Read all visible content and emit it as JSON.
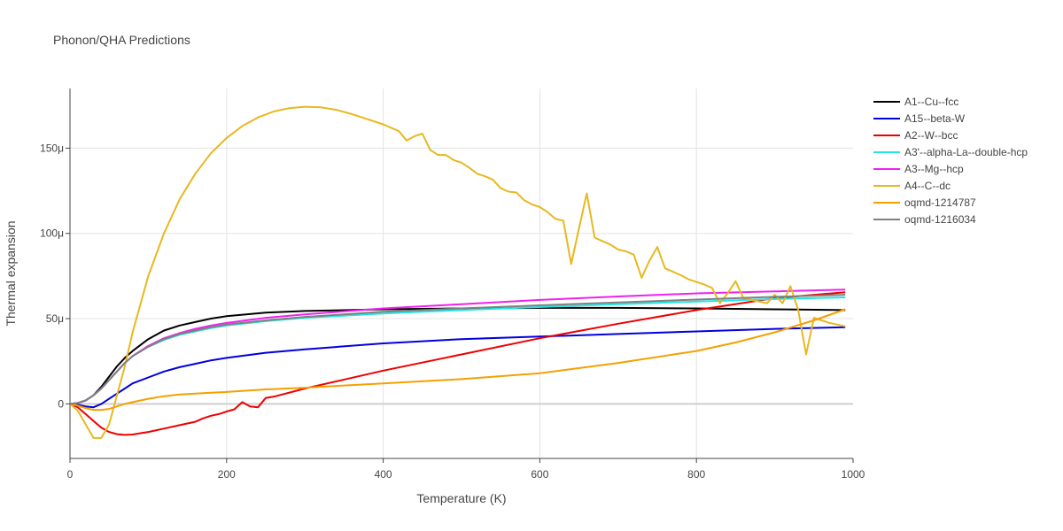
{
  "chart_data": {
    "type": "line",
    "title": "Phonon/QHA Predictions",
    "xlabel": "Temperature (K)",
    "ylabel": "Thermal expansion",
    "xlim": [
      0,
      1000
    ],
    "ylim": [
      -32,
      185
    ],
    "y_unit_suffix": "μ",
    "x_ticks": [
      0,
      200,
      400,
      600,
      800,
      1000
    ],
    "y_ticks": [
      0,
      50,
      100,
      150
    ],
    "x_tick_labels": [
      "0",
      "200",
      "400",
      "600",
      "800",
      "1000"
    ],
    "y_tick_labels": [
      "0",
      "50μ",
      "100μ",
      "150μ"
    ],
    "grid": true,
    "legend_position": "right",
    "series": [
      {
        "name": "A1--Cu--fcc",
        "color": "#000000",
        "x": [
          0,
          10,
          20,
          30,
          40,
          50,
          60,
          70,
          80,
          100,
          120,
          140,
          160,
          180,
          200,
          250,
          300,
          400,
          500,
          600,
          700,
          800,
          900,
          990
        ],
        "y": [
          0,
          0.5,
          2,
          5,
          10,
          16,
          22,
          27,
          31,
          38,
          43,
          46,
          48,
          50,
          51.5,
          53.5,
          54.5,
          55.5,
          56,
          56.3,
          56.3,
          56,
          55.5,
          55
        ]
      },
      {
        "name": "A15--beta-W",
        "color": "#0000dd",
        "x": [
          0,
          10,
          20,
          30,
          40,
          50,
          60,
          70,
          80,
          100,
          120,
          140,
          160,
          180,
          200,
          250,
          300,
          400,
          500,
          600,
          700,
          800,
          900,
          990
        ],
        "y": [
          0,
          -0.5,
          -1.5,
          -2,
          0,
          3,
          6,
          9,
          12,
          15.5,
          19,
          21.5,
          23.5,
          25.5,
          27,
          30,
          32,
          35.5,
          38,
          39.5,
          41,
          42.5,
          44,
          45
        ]
      },
      {
        "name": "A2--W--bcc",
        "color": "#ee0000",
        "x": [
          0,
          10,
          20,
          30,
          40,
          50,
          60,
          70,
          80,
          90,
          100,
          120,
          140,
          160,
          170,
          180,
          190,
          200,
          210,
          220,
          230,
          240,
          250,
          260,
          300,
          400,
          500,
          600,
          700,
          800,
          900,
          990
        ],
        "y": [
          0,
          -2,
          -6,
          -10,
          -14,
          -16.5,
          -17.8,
          -18.2,
          -18,
          -17.2,
          -16.5,
          -14.5,
          -12.5,
          -10.5,
          -8.5,
          -7,
          -6,
          -4.5,
          -3.2,
          1,
          -1.5,
          -2,
          3.5,
          4.2,
          9,
          19.5,
          29,
          38.5,
          47,
          55,
          62,
          65.5
        ]
      },
      {
        "name": "A3'--alpha-La--double-hcp",
        "color": "#22e6e6",
        "x": [
          0,
          10,
          20,
          30,
          40,
          50,
          60,
          70,
          80,
          100,
          120,
          140,
          160,
          180,
          200,
          250,
          300,
          400,
          500,
          600,
          700,
          800,
          900,
          990
        ],
        "y": [
          0,
          0.5,
          2,
          5,
          9,
          14,
          19,
          24,
          28,
          33.5,
          37.5,
          40.5,
          42.5,
          44.5,
          46,
          48.5,
          50.5,
          53,
          55,
          56.8,
          58.5,
          60,
          61.5,
          62.5
        ]
      },
      {
        "name": "A3--Mg--hcp",
        "color": "#ee22ee",
        "x": [
          0,
          10,
          20,
          30,
          40,
          50,
          60,
          70,
          80,
          100,
          120,
          140,
          160,
          180,
          200,
          250,
          300,
          400,
          500,
          600,
          700,
          800,
          900,
          990
        ],
        "y": [
          0,
          0.5,
          2,
          5,
          9,
          14,
          19,
          24,
          28,
          34,
          38.5,
          41.5,
          44,
          46,
          47.5,
          50.5,
          52.5,
          56,
          58.5,
          61,
          63,
          64.8,
          66,
          67
        ]
      },
      {
        "name": "A4--C--dc",
        "color": "#e8b820",
        "x": [
          0,
          10,
          20,
          30,
          40,
          50,
          60,
          70,
          80,
          100,
          120,
          140,
          160,
          180,
          200,
          220,
          240,
          260,
          280,
          300,
          320,
          340,
          360,
          380,
          400,
          420,
          430,
          440,
          450,
          460,
          470,
          480,
          490,
          500,
          510,
          520,
          530,
          540,
          550,
          560,
          570,
          580,
          590,
          600,
          610,
          620,
          630,
          640,
          650,
          660,
          670,
          680,
          690,
          700,
          710,
          720,
          730,
          740,
          750,
          760,
          770,
          780,
          790,
          800,
          810,
          820,
          830,
          840,
          850,
          860,
          870,
          880,
          890,
          900,
          910,
          920,
          930,
          940,
          950,
          960,
          970,
          980,
          990
        ],
        "y": [
          0,
          -4,
          -12,
          -20,
          -20,
          -12,
          5,
          22,
          42,
          75,
          100,
          120,
          135,
          147,
          156,
          163,
          168,
          171.5,
          173.5,
          174.3,
          174,
          172.5,
          170,
          167,
          164,
          160,
          154.5,
          157,
          158.5,
          149,
          146,
          146,
          143,
          141.5,
          138.5,
          135,
          133.5,
          131.5,
          126.5,
          124.5,
          124,
          119.5,
          117,
          115.5,
          112.5,
          108.5,
          107.5,
          82,
          103,
          123.5,
          97.5,
          95.5,
          93.5,
          90.5,
          89.5,
          87.5,
          74,
          84,
          92,
          79.5,
          77.5,
          75.5,
          73,
          71.5,
          70,
          68,
          59,
          65,
          72,
          62,
          61,
          60,
          59,
          64,
          59,
          69,
          55,
          29,
          50.5,
          49,
          47.5,
          46.5,
          45.5
        ]
      },
      {
        "name": "oqmd-1214787",
        "color": "#f5a000",
        "x": [
          0,
          10,
          20,
          30,
          40,
          50,
          60,
          70,
          80,
          100,
          120,
          140,
          160,
          180,
          200,
          250,
          300,
          400,
          500,
          600,
          700,
          800,
          850,
          900,
          950,
          990
        ],
        "y": [
          0,
          -1,
          -2.5,
          -3.5,
          -3.5,
          -3,
          -1.5,
          0,
          1,
          3,
          4.5,
          5.5,
          6,
          6.5,
          7,
          8.5,
          9.5,
          12,
          14.5,
          18,
          24,
          31,
          36,
          42,
          49,
          55.5
        ]
      },
      {
        "name": "oqmd-1216034",
        "color": "#808080",
        "x": [
          0,
          10,
          20,
          30,
          40,
          50,
          60,
          70,
          80,
          100,
          120,
          140,
          160,
          180,
          200,
          250,
          300,
          400,
          500,
          600,
          700,
          800,
          900,
          990
        ],
        "y": [
          0,
          0.5,
          2,
          5,
          9,
          14,
          19,
          24,
          28,
          33.5,
          38,
          41,
          43,
          45,
          46.5,
          49,
          51,
          54,
          56,
          57.8,
          59.5,
          61.2,
          62.8,
          64
        ]
      }
    ]
  }
}
